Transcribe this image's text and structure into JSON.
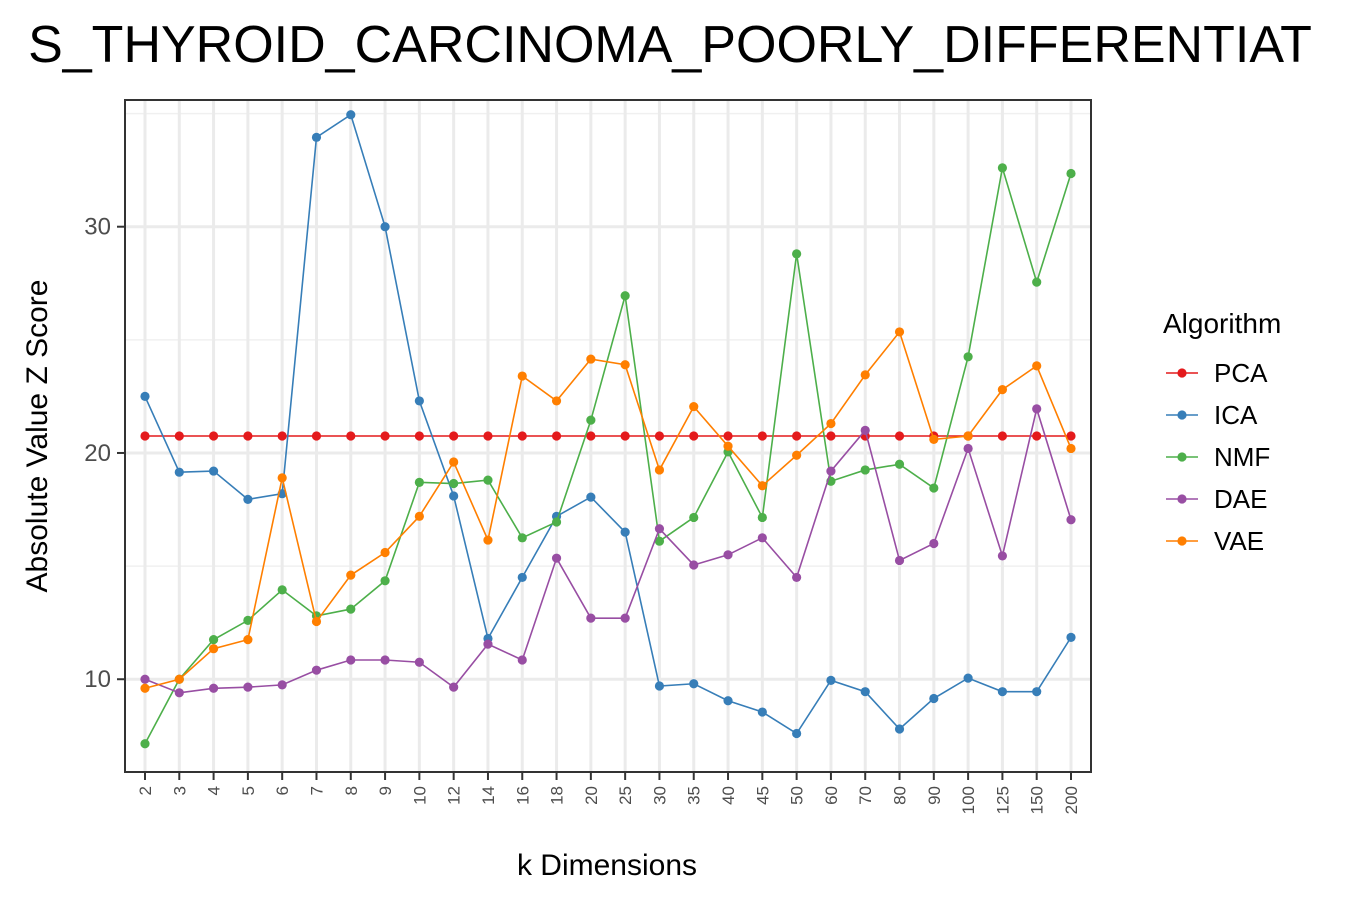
{
  "chart_data": {
    "type": "line",
    "title": "S_THYROID_CARCINOMA_POORLY_DIFFERENTIAT",
    "xlabel": "k Dimensions",
    "ylabel": "Absolute Value Z Score",
    "categories": [
      "2",
      "3",
      "4",
      "5",
      "6",
      "7",
      "8",
      "9",
      "10",
      "12",
      "14",
      "16",
      "18",
      "20",
      "25",
      "30",
      "35",
      "40",
      "45",
      "50",
      "60",
      "70",
      "80",
      "90",
      "100",
      "125",
      "150",
      "200"
    ],
    "ylim": [
      5.9,
      35.6
    ],
    "yticks": [
      10,
      20,
      30
    ],
    "grid": true,
    "legend": {
      "title": "Algorithm",
      "position": "right"
    },
    "series": [
      {
        "name": "PCA",
        "color": "#e41a1c",
        "values": [
          20.75,
          20.75,
          20.75,
          20.75,
          20.75,
          20.75,
          20.75,
          20.75,
          20.75,
          20.75,
          20.75,
          20.75,
          20.75,
          20.75,
          20.75,
          20.75,
          20.75,
          20.75,
          20.75,
          20.75,
          20.75,
          20.75,
          20.75,
          20.75,
          20.75,
          20.75,
          20.75,
          20.75
        ]
      },
      {
        "name": "ICA",
        "color": "#377eb8",
        "values": [
          22.5,
          19.15,
          19.2,
          17.95,
          18.2,
          33.95,
          34.95,
          30.0,
          22.3,
          18.1,
          11.8,
          14.5,
          17.2,
          18.05,
          16.5,
          9.7,
          9.8,
          9.05,
          8.55,
          7.6,
          9.95,
          9.45,
          7.8,
          9.15,
          10.05,
          9.45,
          9.45,
          11.85
        ]
      },
      {
        "name": "NMF",
        "color": "#4daf4a",
        "values": [
          7.15,
          10.0,
          11.75,
          12.6,
          13.95,
          12.8,
          13.1,
          14.35,
          18.7,
          18.65,
          18.8,
          16.25,
          16.95,
          21.45,
          26.95,
          16.1,
          17.15,
          20.05,
          17.15,
          28.8,
          18.75,
          19.25,
          19.5,
          18.45,
          24.25,
          32.6,
          27.55,
          32.35
        ]
      },
      {
        "name": "DAE",
        "color": "#984ea3",
        "values": [
          10.0,
          9.4,
          9.6,
          9.65,
          9.75,
          10.4,
          10.85,
          10.85,
          10.75,
          9.65,
          11.55,
          10.85,
          15.35,
          12.7,
          12.7,
          16.65,
          15.05,
          15.5,
          16.25,
          14.5,
          19.2,
          21.0,
          15.25,
          16.0,
          20.2,
          15.45,
          21.95,
          17.05
        ]
      },
      {
        "name": "VAE",
        "color": "#ff7f00",
        "values": [
          9.6,
          10.0,
          11.35,
          11.75,
          18.9,
          12.55,
          14.6,
          15.6,
          17.2,
          19.6,
          16.15,
          23.4,
          22.3,
          24.15,
          23.9,
          19.25,
          22.05,
          20.3,
          18.55,
          19.9,
          21.3,
          23.45,
          25.35,
          20.6,
          20.75,
          22.8,
          23.85,
          20.2
        ]
      }
    ]
  }
}
